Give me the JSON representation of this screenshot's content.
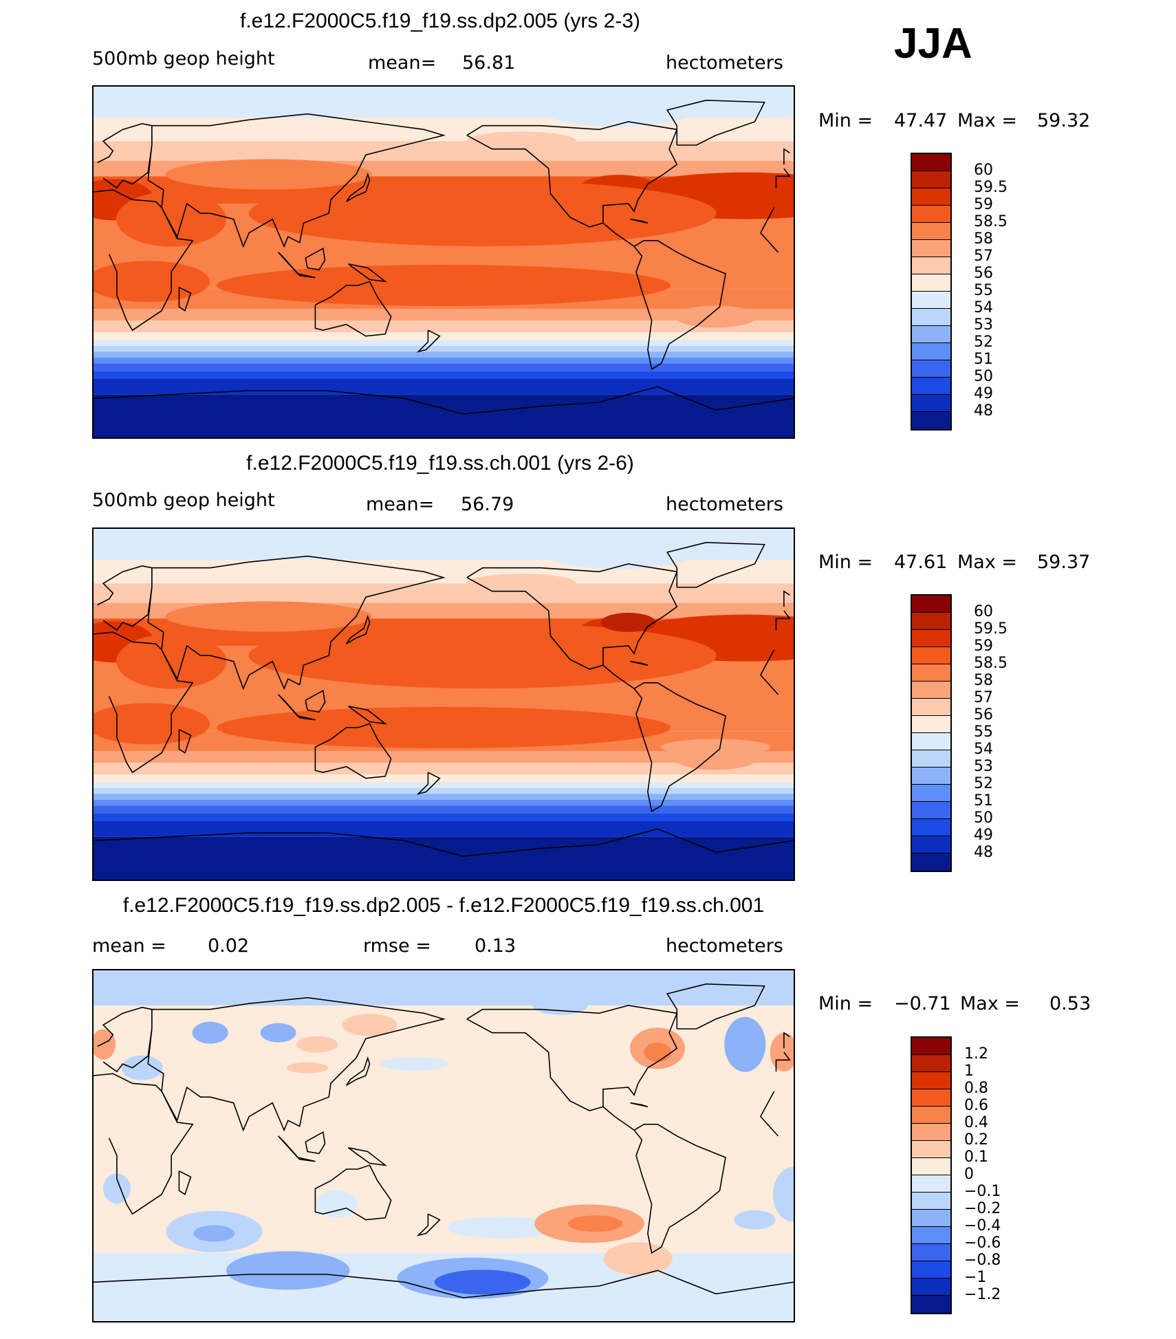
{
  "season": "JJA",
  "colors": {
    "ocean_line": "#000000"
  },
  "chart_data": [
    {
      "type": "heatmap",
      "title": "f.e12.F2000C5.f19_f19.ss.dp2.005 (yrs 2-3)",
      "variable": "500mb  geop  height",
      "stat_label": "mean=",
      "stat_value": "56.81",
      "units": "hectometers",
      "min_label": "Min =",
      "min_value": "47.47",
      "max_label": "Max =",
      "max_value": "59.32",
      "colorbar_labels": [
        "60",
        "59.5",
        "59",
        "58.5",
        "58",
        "57",
        "56",
        "55",
        "54",
        "53",
        "52",
        "51",
        "50",
        "49",
        "48"
      ],
      "colorbar_colors": [
        "#8b0000",
        "#bb2200",
        "#dd3300",
        "#f35a1e",
        "#f9814a",
        "#fba37a",
        "#fdcbb0",
        "#fdebdc",
        "#dcebfb",
        "#bcd6fb",
        "#8cb2f9",
        "#5e8ef8",
        "#3a66ef",
        "#1c4ae6",
        "#0c2ebf",
        "#051a8c"
      ],
      "field": "height"
    },
    {
      "type": "heatmap",
      "title": "f.e12.F2000C5.f19_f19.ss.ch.001 (yrs 2-6)",
      "variable": "500mb  geop  height",
      "stat_label": "mean=",
      "stat_value": "56.79",
      "units": "hectometers",
      "min_label": "Min =",
      "min_value": "47.61",
      "max_label": "Max =",
      "max_value": "59.37",
      "colorbar_labels": [
        "60",
        "59.5",
        "59",
        "58.5",
        "58",
        "57",
        "56",
        "55",
        "54",
        "53",
        "52",
        "51",
        "50",
        "49",
        "48"
      ],
      "colorbar_colors": [
        "#8b0000",
        "#bb2200",
        "#dd3300",
        "#f35a1e",
        "#f9814a",
        "#fba37a",
        "#fdcbb0",
        "#fdebdc",
        "#dcebfb",
        "#bcd6fb",
        "#8cb2f9",
        "#5e8ef8",
        "#3a66ef",
        "#1c4ae6",
        "#0c2ebf",
        "#051a8c"
      ],
      "field": "height"
    },
    {
      "type": "heatmap",
      "title": "f.e12.F2000C5.f19_f19.ss.dp2.005 - f.e12.F2000C5.f19_f19.ss.ch.001",
      "variable": "mean =",
      "variable_value": "0.02",
      "stat_label": "rmse =",
      "stat_value": "0.13",
      "units": "hectometers",
      "min_label": "Min =",
      "min_value": "−0.71",
      "max_label": "Max =",
      "max_value": "0.53",
      "colorbar_labels": [
        "1.2",
        "1",
        "0.8",
        "0.6",
        "0.4",
        "0.2",
        "0.1",
        "0",
        "−0.1",
        "−0.2",
        "−0.4",
        "−0.6",
        "−0.8",
        "−1",
        "−1.2"
      ],
      "colorbar_colors": [
        "#8b0000",
        "#bb2200",
        "#dd3300",
        "#f35a1e",
        "#f9814a",
        "#fba37a",
        "#fdcbb0",
        "#fdebdc",
        "#dcebfb",
        "#bcd6fb",
        "#8cb2f9",
        "#5e8ef8",
        "#3a66ef",
        "#1c4ae6",
        "#0c2ebf",
        "#051a8c"
      ],
      "field": "difference"
    }
  ]
}
